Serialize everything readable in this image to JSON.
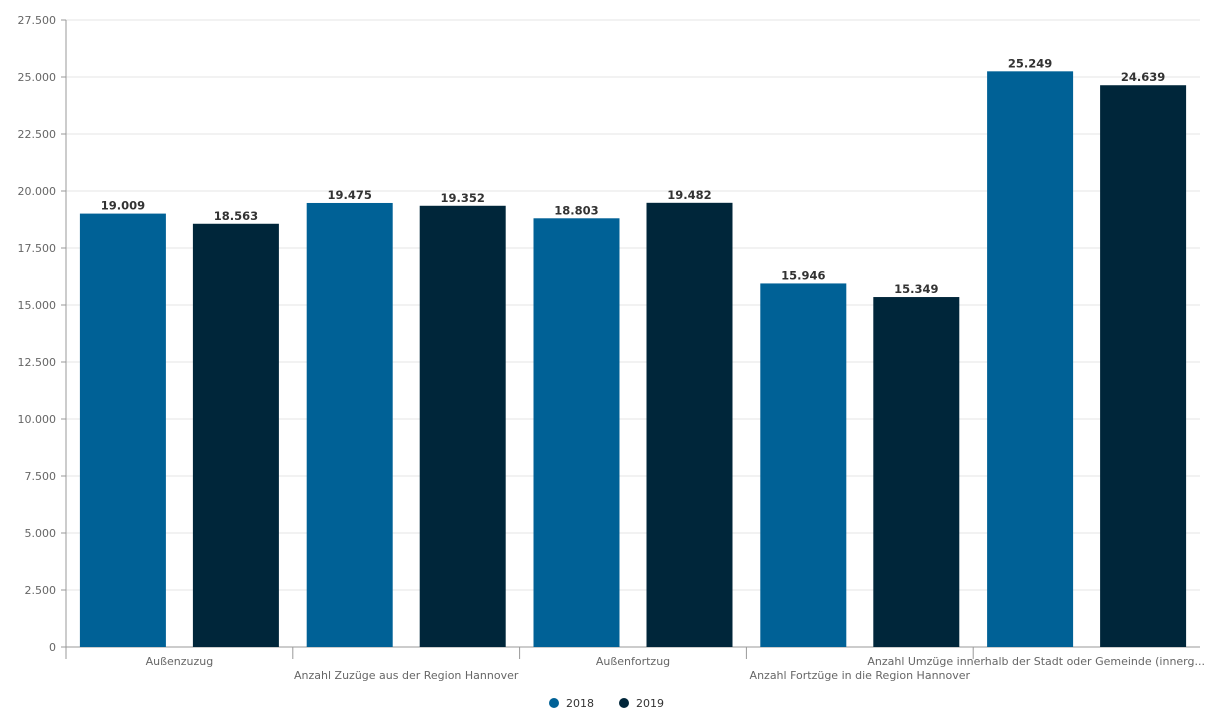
{
  "chart_data": {
    "type": "bar",
    "categories": [
      "Außenzuzug",
      "Anzahl Zuzüge aus der Region Hannover",
      "Außenfortzug",
      "Anzahl Fortzüge in die Region Hannover",
      "Anzahl Umzüge innerhalb der Stadt oder Gemeinde (innerg..."
    ],
    "series": [
      {
        "name": "2018",
        "color": "#006196",
        "values": [
          19009,
          19475,
          18803,
          15946,
          25249
        ]
      },
      {
        "name": "2019",
        "color": "#00263a",
        "values": [
          18563,
          19352,
          19482,
          15349,
          24639
        ]
      }
    ],
    "value_labels": [
      [
        "19.009",
        "19.475",
        "18.803",
        "15.946",
        "25.249"
      ],
      [
        "18.563",
        "19.352",
        "19.482",
        "15.349",
        "24.639"
      ]
    ],
    "yticks": [
      0,
      2500,
      5000,
      7500,
      10000,
      12500,
      15000,
      17500,
      20000,
      22500,
      25000,
      27500
    ],
    "ytick_labels": [
      "0",
      "2.500",
      "5.000",
      "7.500",
      "10.000",
      "12.500",
      "15.000",
      "17.500",
      "20.000",
      "22.500",
      "25.000",
      "27.500"
    ],
    "ylim": [
      0,
      27500
    ],
    "grid": true,
    "legend_position": "bottom-center",
    "title": "",
    "xlabel": "",
    "ylabel": ""
  }
}
